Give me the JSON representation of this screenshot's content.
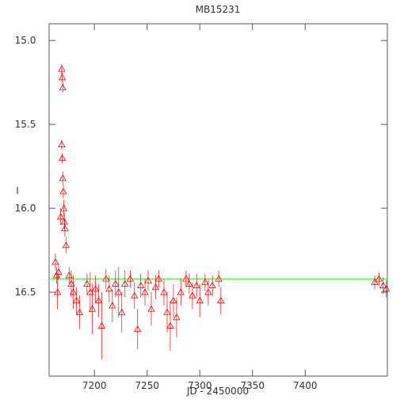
{
  "chart_data": {
    "type": "scatter",
    "title": "MB15231",
    "x_label": "JD - 2450000",
    "y_label": "I",
    "xlim": [
      7157,
      7478
    ],
    "xticks": [
      7200,
      7250,
      7300,
      7350,
      7400
    ],
    "ylim": [
      14.9,
      17.0
    ],
    "y_inverted": true,
    "yticks": [
      {
        "value": 15.0,
        "label": "15.0"
      },
      {
        "value": 15.5,
        "label": "15.5"
      },
      {
        "value": 16.0,
        "label": "16.0"
      },
      {
        "value": 16.5,
        "label": "16.5"
      }
    ],
    "series": [
      {
        "color": "#ff0000",
        "x": [
          7163,
          7164,
          7165,
          7166,
          7168,
          7169,
          7169.5,
          7170,
          7169,
          7169.5,
          7170,
          7170.5,
          7171,
          7171.5,
          7172,
          7173,
          7176,
          7178,
          7180,
          7183,
          7186,
          7193,
          7196,
          7198,
          7201,
          7204,
          7207,
          7211,
          7214,
          7217,
          7220,
          7223,
          7226,
          7229,
          7234,
          7238,
          7241,
          7244,
          7248,
          7251,
          7254,
          7258,
          7261,
          7266,
          7269,
          7272,
          7275,
          7278,
          7282,
          7287,
          7290,
          7293,
          7297,
          7300,
          7305,
          7308,
          7312,
          7318,
          7320,
          7466,
          7470,
          7474,
          7477
        ],
        "values": [
          16.32,
          16.4,
          16.5,
          16.38,
          16.05,
          15.17,
          15.22,
          15.28,
          15.62,
          15.7,
          15.82,
          15.9,
          16.0,
          16.08,
          16.12,
          16.22,
          16.4,
          16.45,
          16.5,
          16.55,
          16.62,
          16.45,
          16.5,
          16.6,
          16.48,
          16.55,
          16.7,
          16.42,
          16.48,
          16.58,
          16.45,
          16.5,
          16.62,
          16.45,
          16.42,
          16.52,
          16.72,
          16.46,
          16.5,
          16.43,
          16.6,
          16.47,
          16.42,
          16.5,
          16.62,
          16.7,
          16.55,
          16.65,
          16.5,
          16.42,
          16.45,
          16.52,
          16.46,
          16.55,
          16.44,
          16.5,
          16.46,
          16.42,
          16.55,
          16.44,
          16.42,
          16.46,
          16.48
        ],
        "errors": [
          0.05,
          0.05,
          0.1,
          0.05,
          0.05,
          0.03,
          0.03,
          0.03,
          0.03,
          0.03,
          0.04,
          0.04,
          0.05,
          0.05,
          0.05,
          0.05,
          0.05,
          0.08,
          0.1,
          0.08,
          0.1,
          0.06,
          0.12,
          0.15,
          0.08,
          0.1,
          0.2,
          0.06,
          0.08,
          0.1,
          0.08,
          0.15,
          0.12,
          0.08,
          0.05,
          0.08,
          0.12,
          0.07,
          0.08,
          0.06,
          0.1,
          0.07,
          0.05,
          0.08,
          0.12,
          0.15,
          0.1,
          0.12,
          0.08,
          0.05,
          0.06,
          0.08,
          0.07,
          0.1,
          0.05,
          0.08,
          0.06,
          0.05,
          0.08,
          0.04,
          0.04,
          0.05,
          0.05
        ]
      }
    ],
    "model_line": {
      "color": "#00ff00",
      "x": [
        7157,
        7478
      ],
      "values": [
        16.42,
        16.42
      ]
    }
  }
}
